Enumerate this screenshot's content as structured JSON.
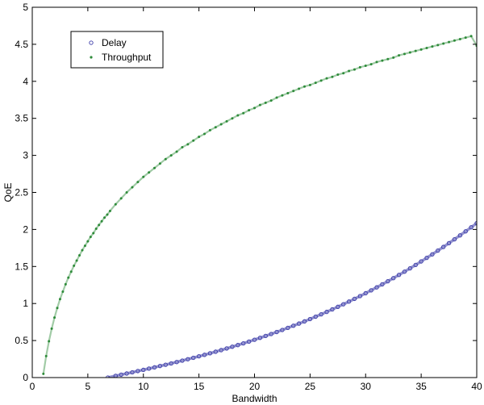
{
  "chart_data": {
    "type": "scatter",
    "title": "",
    "xlabel": "Bandwidth",
    "ylabel": "QoE",
    "xlim": [
      0,
      40
    ],
    "ylim": [
      0,
      5
    ],
    "x_ticks": [
      0,
      5,
      10,
      15,
      20,
      25,
      30,
      35,
      40
    ],
    "y_ticks": [
      0,
      0.5,
      1,
      1.5,
      2,
      2.5,
      3,
      3.5,
      4,
      4.5,
      5
    ],
    "x_tick_labels": [
      "0",
      "5",
      "10",
      "15",
      "20",
      "25",
      "30",
      "35",
      "40"
    ],
    "y_tick_labels": [
      "0",
      "0.5",
      "1",
      "1.5",
      "2",
      "2.5",
      "3",
      "3.5",
      "4",
      "4.5",
      "5"
    ],
    "grid": false,
    "legend_position": "top-left",
    "series": [
      {
        "name": "Delay",
        "marker": "open-circle",
        "color": "#3b3ba8",
        "x": [
          6.8,
          7.5,
          8,
          8.5,
          9,
          9.5,
          10,
          10.5,
          11,
          11.5,
          12,
          12.5,
          13,
          13.5,
          14,
          14.5,
          15,
          15.5,
          16,
          16.5,
          17,
          17.5,
          18,
          18.5,
          19,
          19.5,
          20,
          20.5,
          21,
          21.5,
          22,
          22.5,
          23,
          23.5,
          24,
          24.5,
          25,
          25.5,
          26,
          26.5,
          27,
          27.5,
          28,
          28.5,
          29,
          29.5,
          30,
          30.5,
          31,
          31.5,
          32,
          32.5,
          33,
          33.5,
          34,
          34.5,
          35,
          35.5,
          36,
          36.5,
          37,
          37.5,
          38,
          38.5,
          39,
          39.5,
          40
        ],
        "y": [
          0.0,
          0.023,
          0.039,
          0.055,
          0.071,
          0.088,
          0.104,
          0.121,
          0.138,
          0.156,
          0.173,
          0.191,
          0.21,
          0.229,
          0.248,
          0.267,
          0.287,
          0.307,
          0.328,
          0.349,
          0.371,
          0.393,
          0.416,
          0.439,
          0.462,
          0.486,
          0.511,
          0.536,
          0.562,
          0.588,
          0.615,
          0.643,
          0.671,
          0.7,
          0.729,
          0.759,
          0.79,
          0.822,
          0.854,
          0.887,
          0.921,
          0.955,
          0.99,
          1.026,
          1.063,
          1.1,
          1.139,
          1.178,
          1.218,
          1.259,
          1.3,
          1.343,
          1.386,
          1.43,
          1.475,
          1.521,
          1.568,
          1.616,
          1.664,
          1.714,
          1.764,
          1.815,
          1.867,
          1.92,
          1.974,
          2.029,
          2.085
        ]
      },
      {
        "name": "Throughput",
        "marker": "dot",
        "color": "#2e8b3a",
        "x": [
          1,
          1.25,
          1.5,
          1.75,
          2,
          2.25,
          2.5,
          2.75,
          3,
          3.25,
          3.5,
          3.75,
          4,
          4.25,
          4.5,
          4.75,
          5,
          5.25,
          5.5,
          5.75,
          6,
          6.25,
          6.5,
          6.75,
          7,
          7.5,
          8,
          8.5,
          9,
          9.5,
          10,
          10.5,
          11,
          11.5,
          12,
          12.5,
          13,
          13.5,
          14,
          14.5,
          15,
          15.5,
          16,
          16.5,
          17,
          17.5,
          18,
          18.5,
          19,
          19.5,
          20,
          20.5,
          21,
          21.5,
          22,
          22.5,
          23,
          23.5,
          24,
          24.5,
          25,
          25.5,
          26,
          26.5,
          27,
          27.5,
          28,
          28.5,
          29,
          29.5,
          30,
          30.5,
          31,
          31.5,
          32,
          32.5,
          33,
          33.5,
          34,
          34.5,
          35,
          35.5,
          36,
          36.5,
          37,
          37.5,
          38,
          38.5,
          39,
          39.5,
          40
        ],
        "y": [
          0.05,
          0.29,
          0.49,
          0.66,
          0.81,
          0.94,
          1.06,
          1.16,
          1.26,
          1.35,
          1.43,
          1.51,
          1.58,
          1.65,
          1.72,
          1.78,
          1.84,
          1.9,
          1.95,
          2.01,
          2.06,
          2.11,
          2.16,
          2.2,
          2.25,
          2.34,
          2.42,
          2.5,
          2.57,
          2.64,
          2.71,
          2.77,
          2.83,
          2.89,
          2.95,
          3.0,
          3.05,
          3.11,
          3.15,
          3.2,
          3.25,
          3.29,
          3.34,
          3.38,
          3.42,
          3.46,
          3.5,
          3.54,
          3.57,
          3.61,
          3.64,
          3.68,
          3.71,
          3.74,
          3.78,
          3.81,
          3.84,
          3.87,
          3.9,
          3.93,
          3.95,
          3.98,
          4.01,
          4.04,
          4.06,
          4.09,
          4.11,
          4.14,
          4.16,
          4.19,
          4.21,
          4.23,
          4.26,
          4.28,
          4.3,
          4.32,
          4.35,
          4.37,
          4.39,
          4.41,
          4.43,
          4.45,
          4.47,
          4.49,
          4.51,
          4.53,
          4.55,
          4.57,
          4.59,
          4.61,
          4.48
        ]
      }
    ]
  }
}
